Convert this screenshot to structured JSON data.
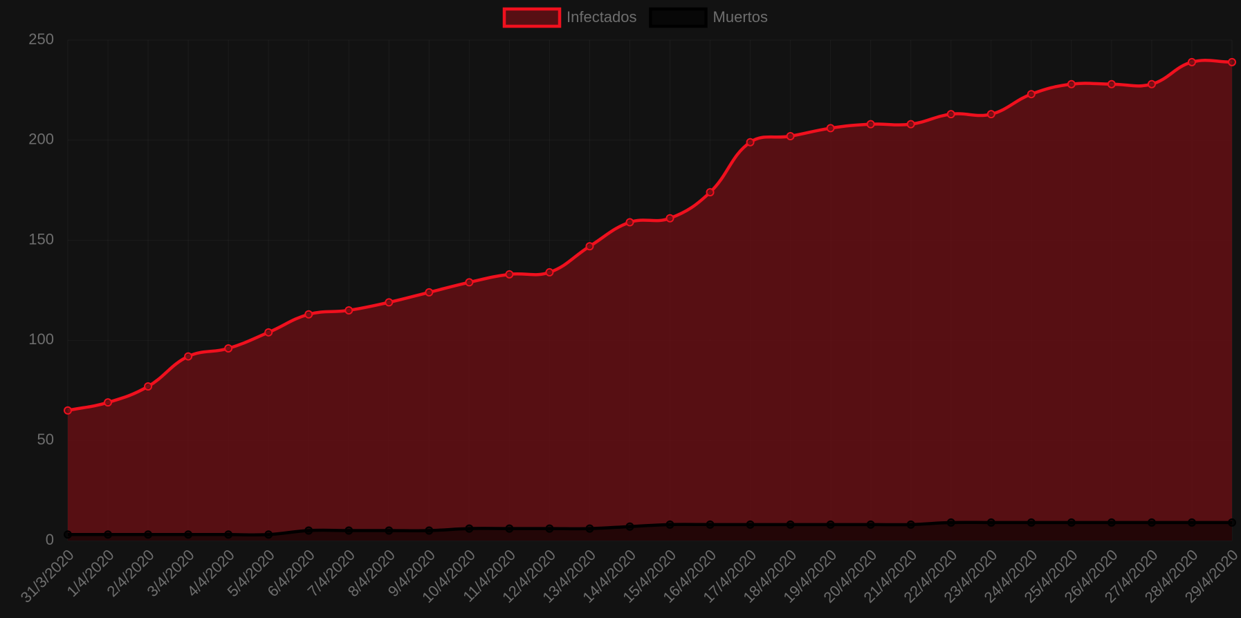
{
  "chart_data": {
    "type": "line",
    "categories": [
      "31/3/2020",
      "1/4/2020",
      "2/4/2020",
      "3/4/2020",
      "4/4/2020",
      "5/4/2020",
      "6/4/2020",
      "7/4/2020",
      "8/4/2020",
      "9/4/2020",
      "10/4/2020",
      "11/4/2020",
      "12/4/2020",
      "13/4/2020",
      "14/4/2020",
      "15/4/2020",
      "16/4/2020",
      "17/4/2020",
      "18/4/2020",
      "19/4/2020",
      "20/4/2020",
      "21/4/2020",
      "22/4/2020",
      "23/4/2020",
      "24/4/2020",
      "25/4/2020",
      "26/4/2020",
      "27/4/2020",
      "28/4/2020",
      "29/4/2020"
    ],
    "series": [
      {
        "name": "Infectados",
        "color": "#f0101e",
        "fill": "rgba(100,15,20,0.85)",
        "values": [
          65,
          69,
          77,
          92,
          96,
          104,
          113,
          115,
          119,
          124,
          129,
          133,
          134,
          147,
          159,
          161,
          174,
          199,
          202,
          206,
          208,
          208,
          213,
          213,
          223,
          228,
          228,
          228,
          239,
          239
        ]
      },
      {
        "name": "Muertos",
        "color": "#000000",
        "fill": "rgba(0,0,0,0.6)",
        "values": [
          3,
          3,
          3,
          3,
          3,
          3,
          5,
          5,
          5,
          5,
          6,
          6,
          6,
          6,
          7,
          8,
          8,
          8,
          8,
          8,
          8,
          8,
          9,
          9,
          9,
          9,
          9,
          9,
          9,
          9
        ]
      }
    ],
    "ylim": [
      0,
      250
    ],
    "yticks": [
      0,
      50,
      100,
      150,
      200,
      250
    ],
    "grid": true,
    "legend": "top"
  }
}
